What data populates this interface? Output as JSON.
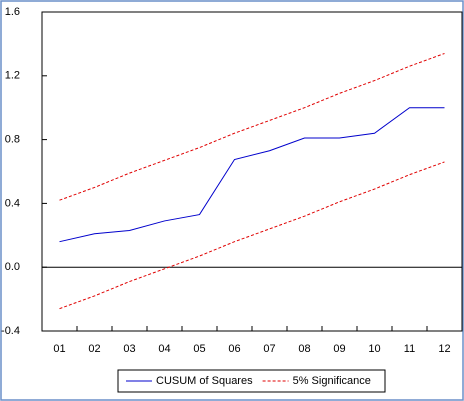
{
  "chart_data": {
    "type": "line",
    "categories": [
      "01",
      "02",
      "03",
      "04",
      "05",
      "06",
      "07",
      "08",
      "09",
      "10",
      "11",
      "12"
    ],
    "series": [
      {
        "name": "CUSUM of Squares",
        "color": "#0000cc",
        "values": [
          0.16,
          0.21,
          0.23,
          0.29,
          0.33,
          0.675,
          0.73,
          0.81,
          0.81,
          0.84,
          1.0,
          1.0
        ]
      },
      {
        "name": "5% Significance",
        "color": "#e00000",
        "dashed": true,
        "upper": [
          0.42,
          0.5,
          0.59,
          0.67,
          0.75,
          0.84,
          0.92,
          1.0,
          1.09,
          1.17,
          1.26,
          1.34
        ],
        "lower": [
          -0.26,
          -0.18,
          -0.09,
          -0.01,
          0.07,
          0.16,
          0.24,
          0.32,
          0.41,
          0.49,
          0.58,
          0.66
        ]
      }
    ],
    "ylim": [
      -0.4,
      1.6
    ],
    "yticks": [
      {
        "value": -0.4,
        "label": "-0.4"
      },
      {
        "value": 0,
        "label": "0.0"
      },
      0.4,
      0.8,
      1.2,
      1.6
    ],
    "zero_line": true,
    "legend": "bottom"
  }
}
